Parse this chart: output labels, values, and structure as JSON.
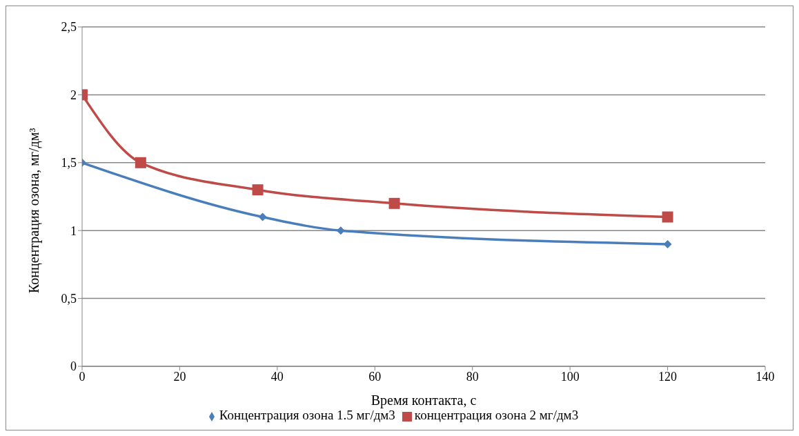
{
  "chart_data": {
    "type": "line",
    "xlabel": "Время контакта, с",
    "ylabel": "Концентрация озона, мг/дм³",
    "xlim": [
      0,
      140
    ],
    "xticks": [
      0,
      20,
      40,
      60,
      80,
      100,
      120,
      140
    ],
    "ylim": [
      0,
      2.5
    ],
    "yticks": [
      0,
      {
        "value": 0.5,
        "label": "0,5"
      },
      1,
      {
        "value": 1.5,
        "label": "1,5"
      },
      2,
      {
        "value": 2.5,
        "label": "2,5"
      }
    ],
    "grid": "y",
    "legend": "bottom",
    "line_style": "solid",
    "series": [
      {
        "name": "Концентрация озона 1.5 мг/дм3",
        "color": "#4a7ebb",
        "marker": "diamond",
        "x": [
          0,
          37,
          53,
          120
        ],
        "values": [
          1.5,
          1.1,
          1.0,
          0.9
        ]
      },
      {
        "name": "концентрация озона 2 мг/дм3",
        "color": "#be4b48",
        "marker": "square",
        "x": [
          0,
          12,
          36,
          64,
          120
        ],
        "values": [
          2.0,
          1.5,
          1.3,
          1.2,
          1.1
        ]
      }
    ]
  }
}
